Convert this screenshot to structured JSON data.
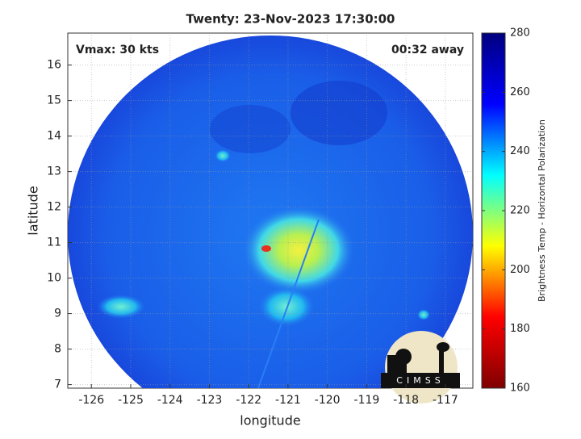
{
  "chart_data": {
    "type": "map",
    "title": "Twenty: 23-Nov-2023 17:30:00",
    "x_label": "longitude",
    "y_label": "latitude",
    "annotations": [
      "Vmax: 30 kts",
      "00:32 away"
    ],
    "xlim": [
      -126.6,
      -116.3
    ],
    "ylim": [
      6.9,
      16.9
    ],
    "xticks": [
      -126,
      -125,
      -124,
      -123,
      -122,
      -121,
      -120,
      -119,
      -118,
      -117
    ],
    "yticks": [
      7,
      8,
      9,
      10,
      11,
      12,
      13,
      14,
      15,
      16
    ],
    "grid": true,
    "colorbar": {
      "label": "Brightness Temp - Horizontal Polarization",
      "lim": [
        160,
        280
      ],
      "ticks": [
        160,
        180,
        200,
        220,
        240,
        260,
        280
      ],
      "colormap": [
        "#7f0000",
        "#ff0000",
        "#ffff00",
        "#00ffff",
        "#0000ff",
        "#00007f"
      ]
    },
    "logo_text": "CIMSS"
  }
}
